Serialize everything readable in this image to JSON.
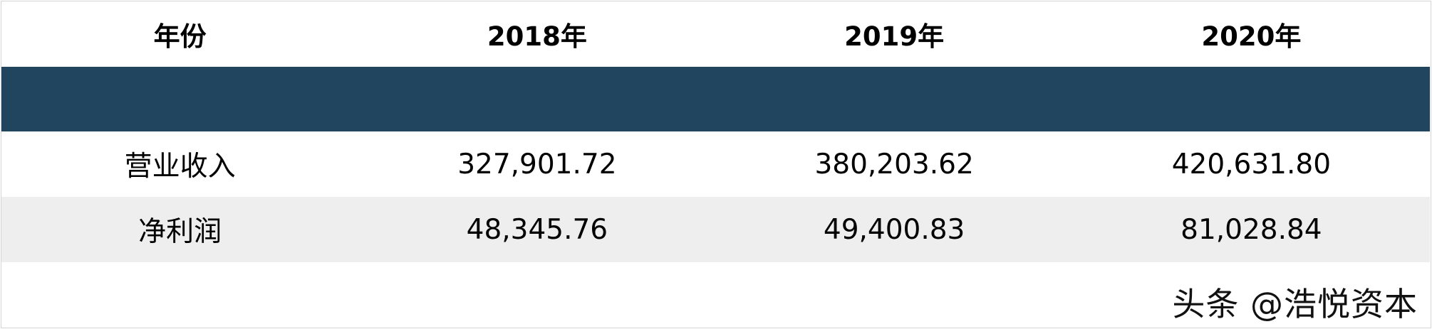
{
  "table": {
    "headers": [
      "年份",
      "2018年",
      "2019年",
      "2020年"
    ],
    "rows": [
      {
        "label": "营业收入",
        "values": [
          "327,901.72",
          "380,203.62",
          "420,631.80"
        ]
      },
      {
        "label": "净利润",
        "values": [
          "48,345.76",
          "49,400.83",
          "81,028.84"
        ]
      }
    ],
    "band_color": "#21455f"
  },
  "watermark": "头条 @浩悦资本"
}
